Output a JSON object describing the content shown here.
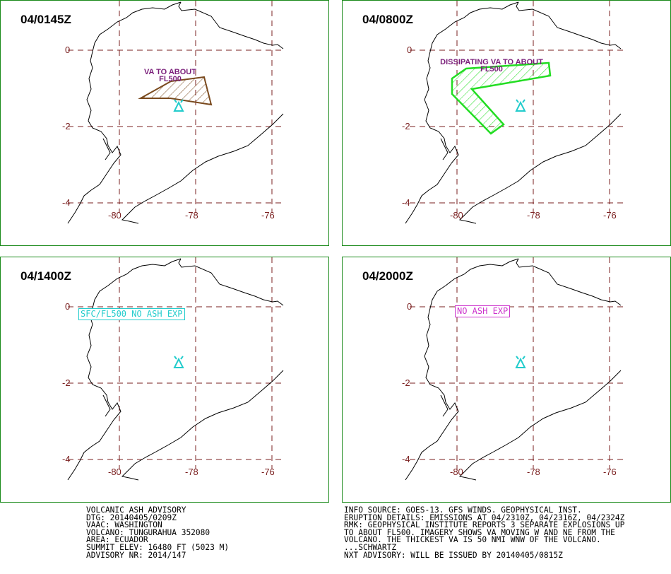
{
  "panels": [
    {
      "title": "04/0145Z",
      "ash_label": [
        "VA TO ABOUT",
        "FL500"
      ],
      "y_labels": [
        "0",
        "-2",
        "-4"
      ],
      "x_labels": [
        "-80",
        "-78",
        "-76"
      ],
      "polygon_color": "#7a4a1e"
    },
    {
      "title": "04/0800Z",
      "ash_label": [
        "DISSIPATING VA TO ABOUT",
        "FL500"
      ],
      "y_labels": [
        "0",
        "-2",
        "-4"
      ],
      "x_labels": [
        "-80",
        "-78",
        "-76"
      ],
      "polygon_color": "#22dd22"
    },
    {
      "title": "04/1400Z",
      "box_label": "SFC/FL500 NO ASH EXP",
      "box_color": "#22cccc",
      "y_labels": [
        "0",
        "-2",
        "-4"
      ],
      "x_labels": [
        "-80",
        "-78",
        "-76"
      ]
    },
    {
      "title": "04/2000Z",
      "box_label": "NO ASH EXP",
      "box_color": "#cc33cc",
      "y_labels": [
        "0",
        "-2",
        "-4"
      ],
      "x_labels": [
        "-80",
        "-78",
        "-76"
      ]
    }
  ],
  "footer_left": [
    "VOLCANIC ASH ADVISORY",
    "DTG: 20140405/0209Z",
    "VAAC: WASHINGTON",
    "VOLCANO: TUNGURAHUA 352080",
    "AREA: ECUADOR",
    "SUMMIT ELEV: 16480 FT (5023 M)",
    "ADVISORY NR: 2014/147"
  ],
  "footer_right": [
    "INFO SOURCE: GOES-13. GFS WINDS. GEOPHYSICAL INST.",
    "ERUPTION DETAILS: EMISSIONS AT 04/2310Z, 04/2316Z, 04/2324Z",
    "RMK: GEOPHYSICAL INSTITUTE REPORTS 3 SEPARATE EXPLOSIONS UP",
    "TO ABOUT FL500. IMAGERY SHOWS VA MOVING W AND NE FROM THE",
    "VOLCANO. THE THICKEST VA IS 50 NMI WNW OF THE VOLCANO.",
    "...SCHWARTZ",
    "NXT ADVISORY: WILL BE ISSUED BY 20140405/0815Z"
  ],
  "colors": {
    "grid": "#7a1f1f",
    "coast": "#000000",
    "volcano": "#22cccc",
    "panel_border": "#1a8a1a"
  }
}
